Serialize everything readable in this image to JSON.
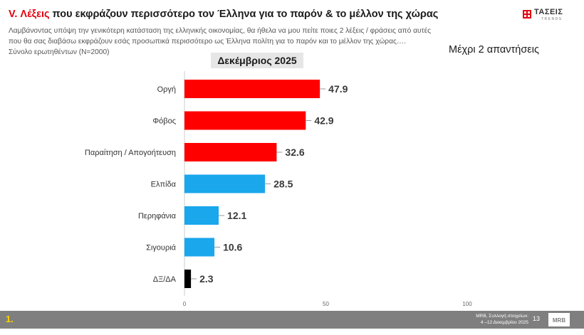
{
  "header": {
    "title_highlight": "V. Λέξεις",
    "title_rest": " που εκφράζουν περισσότερο τον Έλληνα για το παρόν & το μέλλον της χώρας",
    "subtitle": "Λαμβάνοντας υπόψη την γενικότερη κατάσταση της ελληνικής οικονομίας, θα ήθελα να μου πείτε ποιες 2  λέξεις / φράσεις από αυτές που θα σας διαβάσω εκφράζουν εσάς προσωπικά περισσότερο ως Έλληνα πολίτη για το παρόν και το μέλλον της χώρας….",
    "total": "Σύνολο ερωτηθέντων (N=2000)",
    "period": "Δεκέμβριος 2025",
    "max_answers": "Μέχρι 2 απαντήσεις"
  },
  "logo": {
    "name": "ΤΑΣΕΙΣ",
    "sub": "TRENDS"
  },
  "footer": {
    "slide_id": "1.",
    "source_line1": "MRB, Συλλογή στοιχείων:",
    "source_line2": "4 –12 Δεκεμβρίου 2025",
    "page": "13",
    "brand": "MRB"
  },
  "chart_data": {
    "type": "bar",
    "orientation": "horizontal",
    "categories": [
      "Οργή",
      "Φόβος",
      "Παραίτηση / Απογοήτευση",
      "Ελπίδα",
      "Περηφάνια",
      "Σιγουριά",
      "ΔΞ/ΔΑ"
    ],
    "values": [
      47.9,
      42.9,
      32.6,
      28.5,
      12.1,
      10.6,
      2.3
    ],
    "colors": [
      "#ff0000",
      "#ff0000",
      "#ff0000",
      "#1aa7ec",
      "#1aa7ec",
      "#1aa7ec",
      "#000000"
    ],
    "x_ticks": [
      0,
      50,
      100
    ],
    "xlim": [
      0,
      100
    ],
    "title": "Δεκέμβριος 2025",
    "xlabel": "",
    "ylabel": ""
  }
}
